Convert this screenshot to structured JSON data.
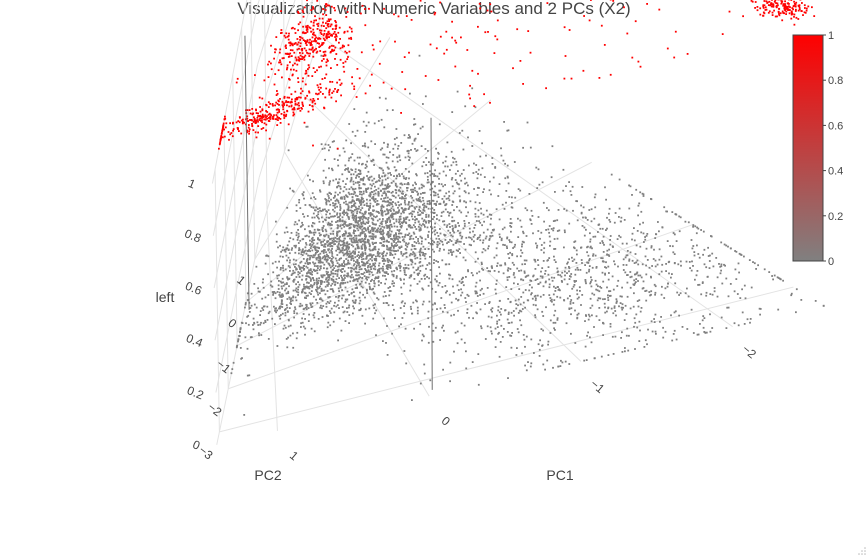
{
  "chart_data": {
    "type": "scatter3d",
    "title": "Visualization with Numeric Variables and 2 PCs (X2)",
    "axes": {
      "x": {
        "label": "PC1",
        "ticks": [
          -2,
          -1,
          0,
          1
        ],
        "tick_labels": [
          "−2",
          "−1",
          "0",
          "1"
        ]
      },
      "y": {
        "label": "PC2",
        "ticks": [
          -3,
          -2,
          -1,
          0,
          1
        ],
        "tick_labels": [
          "−3",
          "−2",
          "−1",
          "0",
          "1"
        ]
      },
      "z": {
        "label": "left",
        "ticks": [
          0,
          0.2,
          0.4,
          0.6,
          0.8,
          1
        ],
        "tick_labels": [
          "0",
          "0.2",
          "0.4",
          "0.6",
          "0.8",
          "1"
        ]
      }
    },
    "colorbar": {
      "ticks": [
        0,
        0.2,
        0.4,
        0.6,
        0.8,
        1
      ],
      "tick_labels": [
        "0",
        "0.2",
        "0.4",
        "0.6",
        "0.8",
        "1"
      ],
      "color_low": "#808080",
      "color_high": "#ff0000"
    },
    "series": [
      {
        "value": 0,
        "color": "#808080",
        "clusters": [
          {
            "pc1": -0.35,
            "pc2": -0.45,
            "sd_pc1": 0.7,
            "sd_pc2": 0.55,
            "count": 3200
          },
          {
            "pc1": -1.55,
            "pc2": -2.25,
            "sd_pc1": 0.65,
            "sd_pc2": 0.55,
            "count": 1100
          }
        ]
      },
      {
        "value": 1,
        "color": "#ff0000",
        "clusters": [
          {
            "pc1": 1.0,
            "pc2": -2.2,
            "sd_pc1": 0.3,
            "sd_pc2": 0.15,
            "count": 320
          },
          {
            "pc1": 0.55,
            "pc2": -1.25,
            "sd_pc1": 0.22,
            "sd_pc2": 0.28,
            "count": 380
          },
          {
            "pc1": -2.45,
            "pc2": -3.05,
            "sd_pc1": 0.07,
            "sd_pc2": 0.09,
            "count": 170
          },
          {
            "pc1": -0.9,
            "pc2": -2.2,
            "sd_pc1": 0.85,
            "sd_pc2": 0.7,
            "count": 150
          }
        ]
      }
    ]
  }
}
